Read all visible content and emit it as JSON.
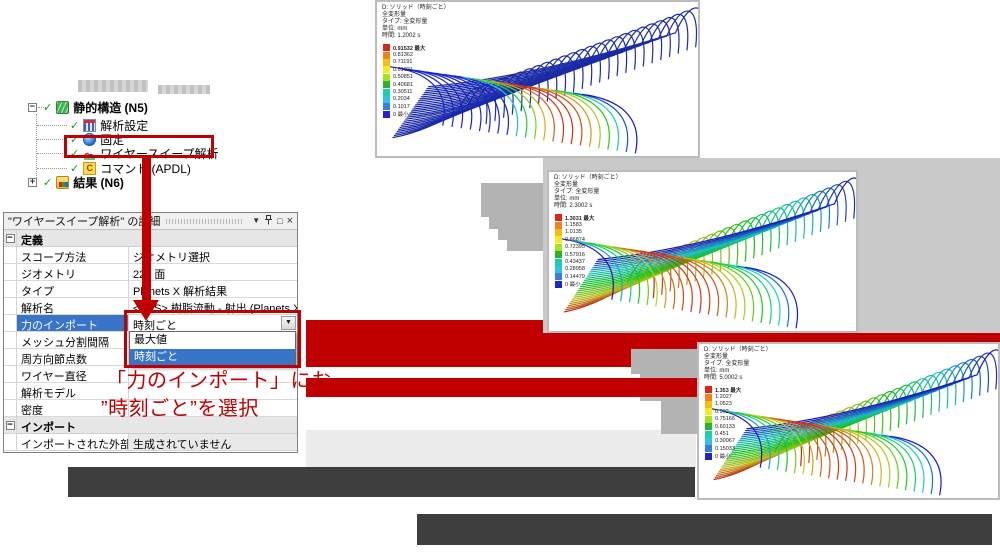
{
  "colors": {
    "accent_red": "#c00000",
    "selection_blue": "#3875c8",
    "legend": [
      "#e02413",
      "#f0821e",
      "#f6bd16",
      "#f2ee1d",
      "#a6e21c",
      "#27b42c",
      "#19cfae",
      "#2fc3ea",
      "#3a7fd5",
      "#2323cc"
    ]
  },
  "tree": {
    "root_label": "静的構造 (N5)",
    "items": [
      {
        "label": "解析設定"
      },
      {
        "label": "固定"
      },
      {
        "label": "ワイヤースイープ解析",
        "highlighted": true
      },
      {
        "label": "コマンド (APDL)"
      },
      {
        "label": "結果 (N6)"
      }
    ]
  },
  "details": {
    "title": "\"ワイヤースイープ解析\" の詳細",
    "rows": [
      {
        "type": "section",
        "label": "定義"
      },
      {
        "label": "スコープ方法",
        "value": "ジオメトリ選択"
      },
      {
        "label": "ジオメトリ",
        "value": "228 面"
      },
      {
        "label": "タイプ",
        "value": "Planets X 解析結果"
      },
      {
        "label": "解析名",
        "value": "<SYS> 樹脂流動 - 射出 (Planets X)"
      },
      {
        "label": "力のインポート",
        "value": "時刻ごと",
        "selected": true,
        "combo": true
      },
      {
        "label": "メッシュ分割間隔",
        "value": ""
      },
      {
        "label": "周方向節点数",
        "value": ""
      },
      {
        "label": "ワイヤー直径",
        "value": ""
      },
      {
        "label": "解析モデル",
        "value": ""
      },
      {
        "label": "密度",
        "value": ""
      },
      {
        "type": "section",
        "label": "インポート"
      },
      {
        "label": "インポートされた外部データ",
        "value": "生成されていません",
        "readonly": true
      }
    ]
  },
  "dropdown": {
    "options": [
      {
        "label": "最大値",
        "selected": false
      },
      {
        "label": "時刻ごと",
        "selected": true
      }
    ]
  },
  "annotation": {
    "line1": "「力のインポート」にお",
    "line2": "”時刻ごと”を選択"
  },
  "panels": [
    {
      "header": [
        "D: ソリッド（時刻ごと）",
        "全変形量",
        "タイプ: 全変形量",
        "単位: mm",
        "時間: 1.2002 s"
      ],
      "legend": [
        "0.91532 最大",
        "0.81362",
        "0.71191",
        "0.61021",
        "0.50851",
        "0.40681",
        "0.30511",
        "0.2034",
        "0.1017",
        "0 最小"
      ]
    },
    {
      "header": [
        "D: ソリッド（時刻ごと）",
        "全変形量",
        "タイプ: 全変形量",
        "単位: mm",
        "時間: 2.3002 s"
      ],
      "legend": [
        "1.3031 最大",
        "1.1583",
        "1.0135",
        "0.86874",
        "0.72395",
        "0.57916",
        "0.43437",
        "0.28958",
        "0.14479",
        "0 最小"
      ]
    },
    {
      "header": [
        "D: ソリッド（時刻ごと）",
        "全変形量",
        "タイプ: 全変形量",
        "単位: mm",
        "時間: 5.0002 s"
      ],
      "legend": [
        "1.353 最大",
        "1.2027",
        "1.0523",
        "0.902",
        "0.75166",
        "0.60133",
        "0.451",
        "0.30067",
        "0.15033",
        "0 最小"
      ]
    }
  ]
}
